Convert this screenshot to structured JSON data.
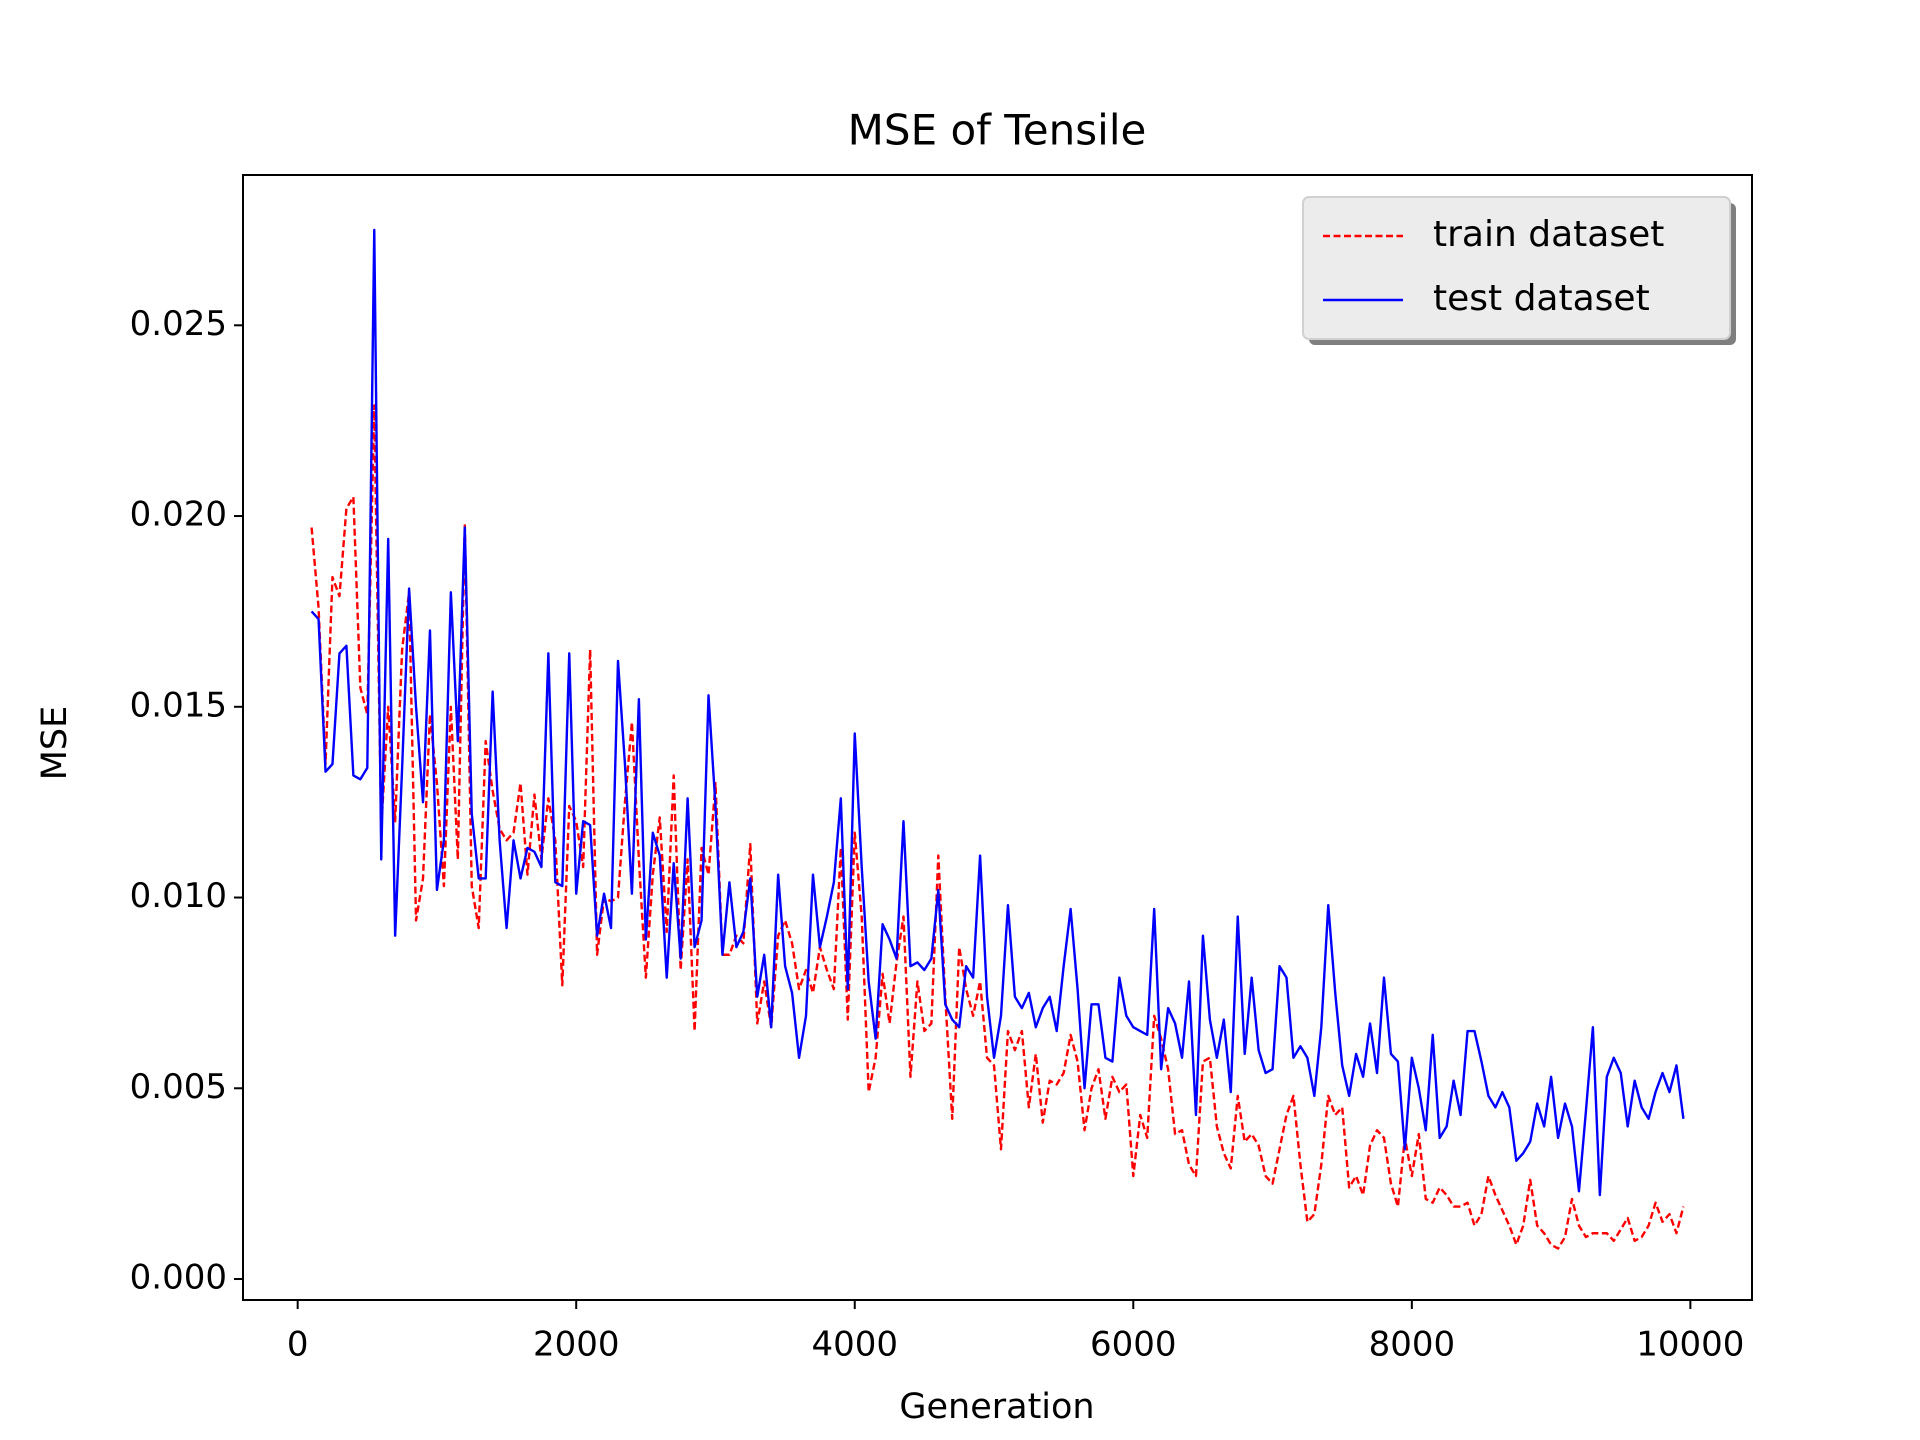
{
  "chart_data": {
    "type": "line",
    "title": "MSE of Tensile",
    "xlabel": "Generation",
    "ylabel": "MSE",
    "legend": "upper right",
    "xlim": [
      -392.5,
      10442.5
    ],
    "ylim": [
      -0.00055,
      0.02894
    ],
    "xticks": [
      0,
      2000,
      4000,
      6000,
      8000,
      10000
    ],
    "yticks": [
      {
        "value": 0,
        "label": "0.000"
      },
      0.005,
      {
        "value": 0.01,
        "label": "0.010"
      },
      0.015,
      {
        "value": 0.02,
        "label": "0.020"
      },
      0.025
    ],
    "x": [
      100,
      150,
      200,
      250,
      300,
      350,
      400,
      450,
      500,
      550,
      600,
      650,
      700,
      750,
      800,
      850,
      900,
      950,
      1000,
      1050,
      1100,
      1150,
      1200,
      1250,
      1300,
      1350,
      1400,
      1450,
      1500,
      1550,
      1600,
      1650,
      1700,
      1750,
      1800,
      1850,
      1900,
      1950,
      2000,
      2050,
      2100,
      2150,
      2200,
      2250,
      2300,
      2350,
      2400,
      2450,
      2500,
      2550,
      2600,
      2650,
      2700,
      2750,
      2800,
      2850,
      2900,
      2950,
      3000,
      3050,
      3100,
      3150,
      3200,
      3250,
      3300,
      3350,
      3400,
      3450,
      3500,
      3550,
      3600,
      3650,
      3700,
      3750,
      3800,
      3850,
      3900,
      3950,
      4000,
      4050,
      4100,
      4150,
      4200,
      4250,
      4300,
      4350,
      4400,
      4450,
      4500,
      4550,
      4600,
      4650,
      4700,
      4750,
      4800,
      4850,
      4900,
      4950,
      5000,
      5050,
      5100,
      5150,
      5200,
      5250,
      5300,
      5350,
      5400,
      5450,
      5500,
      5550,
      5600,
      5650,
      5700,
      5750,
      5800,
      5850,
      5900,
      5950,
      6000,
      6050,
      6100,
      6150,
      6200,
      6250,
      6300,
      6350,
      6400,
      6450,
      6500,
      6550,
      6600,
      6650,
      6700,
      6750,
      6800,
      6850,
      6900,
      6950,
      7000,
      7050,
      7100,
      7150,
      7200,
      7250,
      7300,
      7350,
      7400,
      7450,
      7500,
      7550,
      7600,
      7650,
      7700,
      7750,
      7800,
      7850,
      7900,
      7950,
      8000,
      8050,
      8100,
      8150,
      8200,
      8250,
      8300,
      8350,
      8400,
      8450,
      8500,
      8550,
      8600,
      8650,
      8700,
      8750,
      8800,
      8850,
      8900,
      8950,
      9000,
      9050,
      9100,
      9150,
      9200,
      9250,
      9300,
      9350,
      9400,
      9450,
      9500,
      9550,
      9600,
      9650,
      9700,
      9750,
      9800,
      9850,
      9900,
      9950
    ],
    "series": [
      {
        "name": "train dataset",
        "color": "#ff0000",
        "dash": true,
        "values": [
          0.0197,
          0.0176,
          0.0135,
          0.0184,
          0.0179,
          0.0202,
          0.0205,
          0.0155,
          0.0148,
          0.0229,
          0.0118,
          0.015,
          0.012,
          0.0165,
          0.018,
          0.0094,
          0.0105,
          0.0148,
          0.013,
          0.0103,
          0.015,
          0.011,
          0.0198,
          0.0103,
          0.0092,
          0.0141,
          0.0128,
          0.0118,
          0.0115,
          0.0117,
          0.013,
          0.0106,
          0.0127,
          0.011,
          0.0126,
          0.0115,
          0.0077,
          0.0124,
          0.012,
          0.0108,
          0.0165,
          0.0085,
          0.01,
          0.0099,
          0.01,
          0.0125,
          0.0146,
          0.011,
          0.0079,
          0.0106,
          0.0121,
          0.0091,
          0.0132,
          0.0081,
          0.011,
          0.0065,
          0.0113,
          0.0106,
          0.013,
          0.0085,
          0.0085,
          0.009,
          0.0088,
          0.0114,
          0.0067,
          0.0078,
          0.0066,
          0.009,
          0.0094,
          0.0088,
          0.0076,
          0.0081,
          0.0075,
          0.0087,
          0.0081,
          0.0076,
          0.0113,
          0.0068,
          0.0117,
          0.0095,
          0.0049,
          0.0058,
          0.008,
          0.0067,
          0.0083,
          0.0095,
          0.0053,
          0.0078,
          0.0065,
          0.0067,
          0.0111,
          0.0074,
          0.0042,
          0.0087,
          0.0076,
          0.0069,
          0.0078,
          0.0058,
          0.0056,
          0.0034,
          0.0065,
          0.006,
          0.0065,
          0.0045,
          0.0059,
          0.0041,
          0.0052,
          0.0051,
          0.0054,
          0.0064,
          0.0057,
          0.0039,
          0.005,
          0.0055,
          0.0042,
          0.0053,
          0.0049,
          0.0051,
          0.0027,
          0.0043,
          0.0037,
          0.0069,
          0.0063,
          0.0055,
          0.0038,
          0.0039,
          0.003,
          0.0027,
          0.0057,
          0.0058,
          0.004,
          0.0033,
          0.0029,
          0.0048,
          0.0036,
          0.0038,
          0.0035,
          0.0027,
          0.0025,
          0.0034,
          0.0043,
          0.0048,
          0.003,
          0.0015,
          0.0017,
          0.003,
          0.0048,
          0.0043,
          0.0045,
          0.0024,
          0.0027,
          0.0022,
          0.0035,
          0.0039,
          0.0037,
          0.0025,
          0.0019,
          0.0037,
          0.0027,
          0.0038,
          0.0021,
          0.002,
          0.0024,
          0.0022,
          0.0019,
          0.0019,
          0.002,
          0.0014,
          0.0017,
          0.0027,
          0.0022,
          0.0018,
          0.0014,
          0.0009,
          0.0014,
          0.0026,
          0.0014,
          0.0012,
          0.0009,
          0.0008,
          0.0011,
          0.0021,
          0.0014,
          0.0011,
          0.0012,
          0.0012,
          0.0012,
          0.001,
          0.0013,
          0.0016,
          0.001,
          0.0011,
          0.0014,
          0.002,
          0.0015,
          0.0017,
          0.0012,
          0.0019
        ]
      },
      {
        "name": "test dataset",
        "color": "#0000ff",
        "dash": false,
        "values": [
          0.0175,
          0.0173,
          0.0133,
          0.0135,
          0.0164,
          0.0166,
          0.0132,
          0.0131,
          0.0134,
          0.0275,
          0.011,
          0.0194,
          0.009,
          0.0134,
          0.0181,
          0.015,
          0.0125,
          0.017,
          0.0102,
          0.0115,
          0.018,
          0.0141,
          0.0197,
          0.0122,
          0.0105,
          0.0105,
          0.0154,
          0.0115,
          0.0092,
          0.0115,
          0.0105,
          0.0113,
          0.0112,
          0.0108,
          0.0164,
          0.0104,
          0.0103,
          0.0164,
          0.0101,
          0.012,
          0.0119,
          0.009,
          0.0101,
          0.0092,
          0.0162,
          0.0135,
          0.0101,
          0.0152,
          0.0089,
          0.0117,
          0.0111,
          0.0079,
          0.0109,
          0.0084,
          0.0126,
          0.0087,
          0.0094,
          0.0153,
          0.0124,
          0.0085,
          0.0104,
          0.0087,
          0.0091,
          0.0105,
          0.0074,
          0.0085,
          0.0066,
          0.0106,
          0.0082,
          0.0075,
          0.0058,
          0.0069,
          0.0106,
          0.0087,
          0.0095,
          0.0104,
          0.0126,
          0.0076,
          0.0143,
          0.0108,
          0.0078,
          0.0063,
          0.0093,
          0.0089,
          0.0084,
          0.012,
          0.0082,
          0.0083,
          0.0081,
          0.0084,
          0.0102,
          0.0072,
          0.0068,
          0.0066,
          0.0082,
          0.0079,
          0.0111,
          0.0074,
          0.0058,
          0.0069,
          0.0098,
          0.0074,
          0.0071,
          0.0075,
          0.0066,
          0.0071,
          0.0074,
          0.0065,
          0.0082,
          0.0097,
          0.0076,
          0.005,
          0.0072,
          0.0072,
          0.0058,
          0.0057,
          0.0079,
          0.0069,
          0.0066,
          0.0065,
          0.0064,
          0.0097,
          0.0055,
          0.0071,
          0.0067,
          0.0058,
          0.0078,
          0.0043,
          0.009,
          0.0068,
          0.0058,
          0.0068,
          0.0049,
          0.0095,
          0.0059,
          0.0079,
          0.006,
          0.0054,
          0.0055,
          0.0082,
          0.0079,
          0.0058,
          0.0061,
          0.0058,
          0.0048,
          0.0066,
          0.0098,
          0.0075,
          0.0056,
          0.0048,
          0.0059,
          0.0053,
          0.0067,
          0.0054,
          0.0079,
          0.0059,
          0.0057,
          0.0034,
          0.0058,
          0.005,
          0.0039,
          0.0064,
          0.0037,
          0.004,
          0.0052,
          0.0043,
          0.0065,
          0.0065,
          0.0057,
          0.0048,
          0.0045,
          0.0049,
          0.0045,
          0.0031,
          0.0033,
          0.0036,
          0.0046,
          0.004,
          0.0053,
          0.0037,
          0.0046,
          0.004,
          0.0023,
          0.0044,
          0.0066,
          0.0022,
          0.0053,
          0.0058,
          0.0054,
          0.004,
          0.0052,
          0.0045,
          0.0042,
          0.0049,
          0.0054,
          0.0049,
          0.0056,
          0.0042
        ]
      }
    ]
  }
}
